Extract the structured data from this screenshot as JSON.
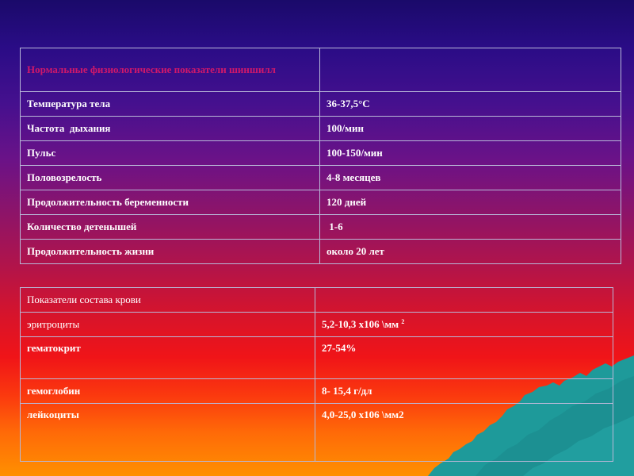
{
  "physiology_table": {
    "header": "Нормальные физиологические показатели шиншилл",
    "header_value": "",
    "rows": [
      {
        "label": "Температура тела",
        "value": "36-37,5°С"
      },
      {
        "label": "Частота  дыхания",
        "value": "100/мин"
      },
      {
        "label": "Пульс",
        "value": "100-150/мин"
      },
      {
        "label": "Половозрелость",
        "value": "4-8 месяцев"
      },
      {
        "label": "Продолжительность беременности",
        "value": "120 дней"
      },
      {
        "label": "Количество детенышей",
        "value": " 1-6"
      },
      {
        "label": "Продолжительность жизни",
        "value": "около 20 лет"
      }
    ]
  },
  "blood_table": {
    "header": "Показатели состава крови",
    "header_value": "",
    "rows": [
      {
        "label": "эритроциты",
        "value": "5,2-10,3 х106 \\мм ",
        "value_sup": "2"
      },
      {
        "label": "гематокрит",
        "value": "27-54%"
      },
      {
        "label": "гемоглобин",
        "value": "8- 15,4 г/дл"
      },
      {
        "label": "лейкоциты",
        "value": "4,0-25,0 х106 \\мм2"
      }
    ]
  },
  "colors": {
    "background_top": "#1a0a6a",
    "background_bottom": "#ff9000",
    "mountain": "#1e9a9a",
    "header_text": "#d0186a",
    "cell_text": "#ffffff",
    "cell_border": "#b8b8d8"
  }
}
